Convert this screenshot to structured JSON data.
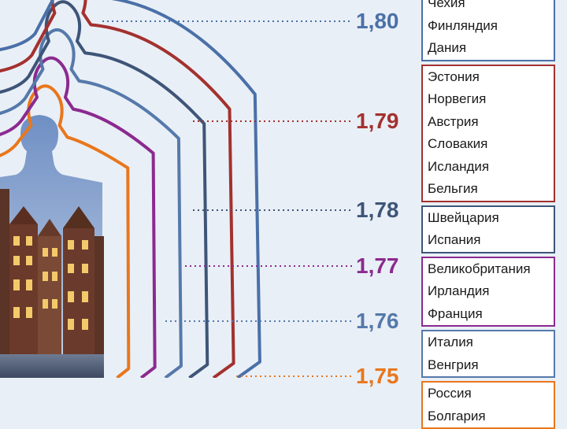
{
  "chart_data": {
    "type": "table",
    "groups": [
      {
        "height": "1,80",
        "color": "#4a70a8",
        "countries": [
          "Чехия",
          "Финляндия",
          "Дания"
        ]
      },
      {
        "height": "1,79",
        "color": "#a3312f",
        "countries": [
          "Эстония",
          "Норвегия",
          "Австрия",
          "Словакия",
          "Исландия",
          "Бельгия"
        ]
      },
      {
        "height": "1,78",
        "color": "#3e5578",
        "countries": [
          "Швейцария",
          "Испания"
        ]
      },
      {
        "height": "1,77",
        "color": "#8b2a8f",
        "countries": [
          "Великобритания",
          "Ирландия",
          "Франция"
        ]
      },
      {
        "height": "1,76",
        "color": "#5579ab",
        "countries": [
          "Италия",
          "Венгрия"
        ]
      },
      {
        "height": "1,75",
        "color": "#e8771d",
        "countries": [
          "Россия",
          "Болгария"
        ]
      }
    ],
    "silhouette_colors": [
      "#e8771d",
      "#8b2a8f",
      "#5579ab",
      "#3e5578",
      "#a3312f",
      "#4a70a8"
    ]
  }
}
